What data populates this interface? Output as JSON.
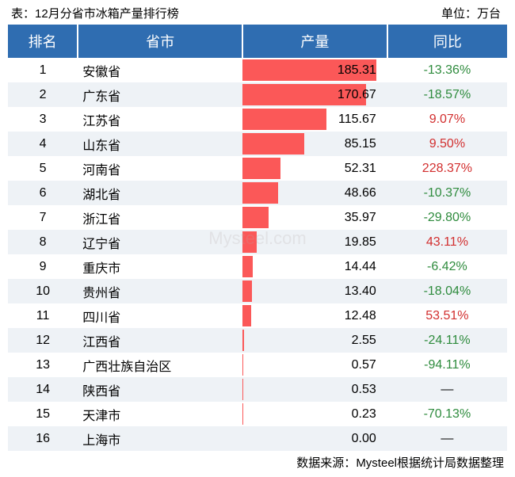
{
  "header": {
    "title_prefix": "表：",
    "title": "12月分省市冰箱产量排行榜",
    "unit_prefix": "单位：",
    "unit": "万台"
  },
  "columns": {
    "rank": "排名",
    "province": "省市",
    "output": "产量",
    "yoy": "同比"
  },
  "table": {
    "type": "table-with-bar",
    "bar_color": "#fb5858",
    "header_bg": "#2f6db1",
    "header_fg": "#ffffff",
    "row_odd_bg": "#ffffff",
    "row_even_bg": "#eef2f6",
    "yoy_negative_color": "#2e8b3d",
    "yoy_positive_color": "#d22f2f",
    "bar_max_value": 200,
    "rows": [
      {
        "rank": "1",
        "province": "安徽省",
        "output": "185.31",
        "output_num": 185.31,
        "yoy": "-13.36%",
        "yoy_sign": "neg"
      },
      {
        "rank": "2",
        "province": "广东省",
        "output": "170.67",
        "output_num": 170.67,
        "yoy": "-18.57%",
        "yoy_sign": "neg"
      },
      {
        "rank": "3",
        "province": "江苏省",
        "output": "115.67",
        "output_num": 115.67,
        "yoy": "9.07%",
        "yoy_sign": "pos"
      },
      {
        "rank": "4",
        "province": "山东省",
        "output": "85.15",
        "output_num": 85.15,
        "yoy": "9.50%",
        "yoy_sign": "pos"
      },
      {
        "rank": "5",
        "province": "河南省",
        "output": "52.31",
        "output_num": 52.31,
        "yoy": "228.37%",
        "yoy_sign": "pos"
      },
      {
        "rank": "6",
        "province": "湖北省",
        "output": "48.66",
        "output_num": 48.66,
        "yoy": "-10.37%",
        "yoy_sign": "neg"
      },
      {
        "rank": "7",
        "province": "浙江省",
        "output": "35.97",
        "output_num": 35.97,
        "yoy": "-29.80%",
        "yoy_sign": "neg"
      },
      {
        "rank": "8",
        "province": "辽宁省",
        "output": "19.85",
        "output_num": 19.85,
        "yoy": "43.11%",
        "yoy_sign": "pos"
      },
      {
        "rank": "9",
        "province": "重庆市",
        "output": "14.44",
        "output_num": 14.44,
        "yoy": "-6.42%",
        "yoy_sign": "neg"
      },
      {
        "rank": "10",
        "province": "贵州省",
        "output": "13.40",
        "output_num": 13.4,
        "yoy": "-18.04%",
        "yoy_sign": "neg"
      },
      {
        "rank": "11",
        "province": "四川省",
        "output": "12.48",
        "output_num": 12.48,
        "yoy": "53.51%",
        "yoy_sign": "pos"
      },
      {
        "rank": "12",
        "province": "江西省",
        "output": "2.55",
        "output_num": 2.55,
        "yoy": "-24.11%",
        "yoy_sign": "neg"
      },
      {
        "rank": "13",
        "province": "广西壮族自治区",
        "output": "0.57",
        "output_num": 0.57,
        "yoy": "-94.11%",
        "yoy_sign": "neg"
      },
      {
        "rank": "14",
        "province": "陕西省",
        "output": "0.53",
        "output_num": 0.53,
        "yoy": "—",
        "yoy_sign": "none"
      },
      {
        "rank": "15",
        "province": "天津市",
        "output": "0.23",
        "output_num": 0.23,
        "yoy": "-70.13%",
        "yoy_sign": "neg"
      },
      {
        "rank": "16",
        "province": "上海市",
        "output": "0.00",
        "output_num": 0.0,
        "yoy": "—",
        "yoy_sign": "none"
      }
    ]
  },
  "footer": {
    "source_prefix": "数据来源：",
    "source": "Mysteel根据统计局数据整理"
  },
  "watermark": "Mysteel.com"
}
